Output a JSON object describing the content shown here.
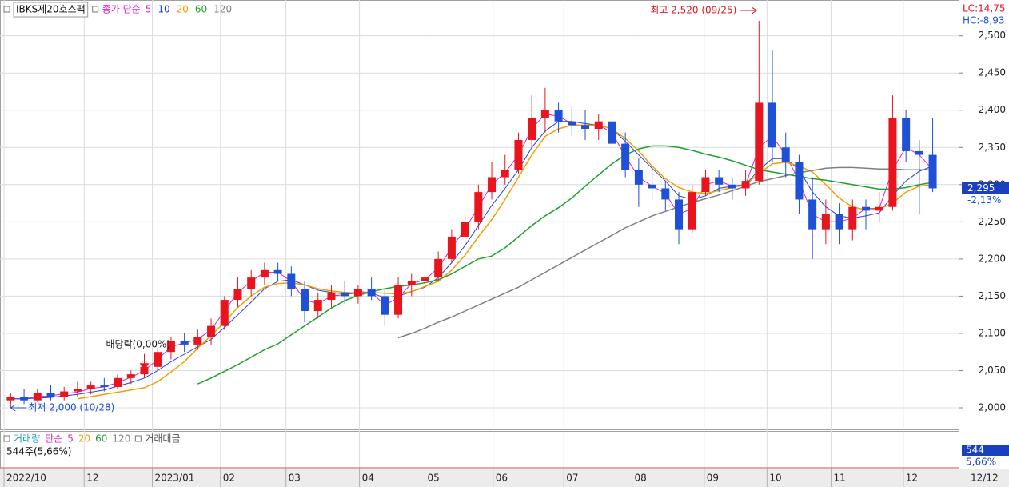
{
  "chart_data": {
    "type": "candlestick",
    "title": "IBKS제20호스팩",
    "ma_label": "종가 단순",
    "lc": "LC:14,75",
    "hc": "HC:-8,93",
    "up_color": "#e8141e",
    "down_color": "#1e50d8",
    "grid": true,
    "xlim": [
      0,
      71.5
    ],
    "xticks": [
      {
        "value": 0,
        "label": "2022/10"
      },
      {
        "value": 6,
        "label": "12"
      },
      {
        "value": 11.1,
        "label": "2023/01"
      },
      {
        "value": 16.2,
        "label": "02"
      },
      {
        "value": 21.1,
        "label": "03"
      },
      {
        "value": 26.6,
        "label": "04"
      },
      {
        "value": 31.5,
        "label": "05"
      },
      {
        "value": 36.6,
        "label": "06"
      },
      {
        "value": 41.9,
        "label": "07"
      },
      {
        "value": 47,
        "label": "08"
      },
      {
        "value": 52.4,
        "label": "09"
      },
      {
        "value": 57.1,
        "label": "10"
      },
      {
        "value": 61.9,
        "label": "11"
      },
      {
        "value": 67.3,
        "label": "12"
      }
    ],
    "date_end": "12/12",
    "ylim": [
      1971,
      2548
    ],
    "yticks": [
      {
        "value": 2000,
        "label": "2,000"
      },
      {
        "value": 2050,
        "label": "2,050"
      },
      {
        "value": 2100,
        "label": "2,100"
      },
      {
        "value": 2150,
        "label": "2,150"
      },
      {
        "value": 2200,
        "label": "2,200"
      },
      {
        "value": 2250,
        "label": "2,250"
      },
      {
        "value": 2300,
        "label": "2,300"
      },
      {
        "value": 2350,
        "label": "2,350"
      },
      {
        "value": 2400,
        "label": "2,400"
      },
      {
        "value": 2450,
        "label": "2,450"
      },
      {
        "value": 2500,
        "label": "2,500"
      }
    ],
    "open": [
      2010,
      2015,
      2010,
      2020,
      2015,
      2022,
      2025,
      2030,
      2028,
      2040,
      2045,
      2055,
      2075,
      2090,
      2085,
      2095,
      2110,
      2145,
      2160,
      2175,
      2185,
      2180,
      2160,
      2130,
      2145,
      2155,
      2150,
      2160,
      2150,
      2125,
      2165,
      2170,
      2175,
      2200,
      2230,
      2250,
      2290,
      2310,
      2320,
      2360,
      2390,
      2400,
      2385,
      2380,
      2375,
      2385,
      2355,
      2320,
      2300,
      2295,
      2280,
      2240,
      2290,
      2310,
      2300,
      2295,
      2305,
      2410,
      2350,
      2330,
      2280,
      2240,
      2260,
      2240,
      2270,
      2265,
      2270,
      2390,
      2345,
      2340
    ],
    "high": [
      2020,
      2025,
      2025,
      2030,
      2028,
      2035,
      2035,
      2040,
      2045,
      2050,
      2060,
      2080,
      2095,
      2100,
      2105,
      2120,
      2150,
      2175,
      2185,
      2195,
      2195,
      2190,
      2170,
      2155,
      2165,
      2170,
      2165,
      2175,
      2160,
      2175,
      2180,
      2185,
      2210,
      2240,
      2260,
      2300,
      2330,
      2340,
      2370,
      2420,
      2430,
      2410,
      2405,
      2400,
      2395,
      2390,
      2370,
      2335,
      2320,
      2305,
      2290,
      2300,
      2320,
      2320,
      2310,
      2320,
      2520,
      2480,
      2370,
      2340,
      2310,
      2280,
      2275,
      2280,
      2280,
      2290,
      2420,
      2400,
      2360,
      2390
    ],
    "low": [
      2000,
      2005,
      2008,
      2010,
      2010,
      2015,
      2018,
      2022,
      2025,
      2032,
      2040,
      2050,
      2065,
      2075,
      2078,
      2085,
      2105,
      2135,
      2150,
      2165,
      2170,
      2150,
      2115,
      2120,
      2135,
      2140,
      2140,
      2145,
      2110,
      2120,
      2150,
      2120,
      2170,
      2195,
      2220,
      2240,
      2280,
      2300,
      2315,
      2350,
      2370,
      2370,
      2365,
      2360,
      2360,
      2340,
      2310,
      2270,
      2280,
      2265,
      2220,
      2235,
      2285,
      2290,
      2280,
      2285,
      2300,
      2330,
      2310,
      2260,
      2200,
      2220,
      2220,
      2225,
      2240,
      2250,
      2265,
      2330,
      2260,
      2290
    ],
    "close": [
      2015,
      2010,
      2020,
      2015,
      2022,
      2025,
      2030,
      2028,
      2040,
      2045,
      2055,
      2075,
      2090,
      2085,
      2095,
      2110,
      2145,
      2160,
      2175,
      2185,
      2180,
      2160,
      2130,
      2145,
      2155,
      2150,
      2160,
      2150,
      2125,
      2165,
      2170,
      2175,
      2200,
      2230,
      2250,
      2290,
      2310,
      2320,
      2360,
      2390,
      2400,
      2385,
      2380,
      2375,
      2385,
      2355,
      2320,
      2300,
      2295,
      2280,
      2240,
      2290,
      2310,
      2300,
      2295,
      2305,
      2410,
      2350,
      2330,
      2280,
      2240,
      2260,
      2240,
      2270,
      2265,
      2270,
      2390,
      2345,
      2340,
      2295
    ],
    "series": [
      {
        "name": "5",
        "color": "#e020c0",
        "values": [
          2012,
          2012,
          2015,
          2016,
          2019,
          2021,
          2026,
          2028,
          2034,
          2041,
          2050,
          2065,
          2082,
          2087,
          2092,
          2105,
          2130,
          2155,
          2170,
          2182,
          2182,
          2170,
          2145,
          2140,
          2150,
          2152,
          2156,
          2155,
          2138,
          2148,
          2167,
          2172,
          2188,
          2215,
          2240,
          2270,
          2300,
          2316,
          2340,
          2375,
          2395,
          2392,
          2382,
          2378,
          2380,
          2370,
          2338,
          2310,
          2298,
          2288,
          2260,
          2268,
          2300,
          2305,
          2298,
          2300,
          2350,
          2365,
          2340,
          2305,
          2260,
          2250,
          2250,
          2255,
          2268,
          2268,
          2320,
          2350,
          2340,
          2320
        ]
      },
      {
        "name": "10",
        "color": "#2040e0",
        "values": [
          2012,
          2012,
          2013,
          2014,
          2016,
          2018,
          2021,
          2024,
          2029,
          2034,
          2040,
          2050,
          2062,
          2072,
          2082,
          2092,
          2108,
          2125,
          2142,
          2160,
          2170,
          2172,
          2165,
          2158,
          2155,
          2153,
          2154,
          2154,
          2148,
          2150,
          2156,
          2162,
          2175,
          2195,
          2218,
          2245,
          2272,
          2295,
          2320,
          2350,
          2372,
          2385,
          2385,
          2382,
          2380,
          2375,
          2358,
          2340,
          2322,
          2305,
          2285,
          2280,
          2285,
          2295,
          2298,
          2300,
          2320,
          2335,
          2335,
          2320,
          2290,
          2270,
          2258,
          2255,
          2258,
          2262,
          2285,
          2305,
          2318,
          2325
        ]
      },
      {
        "name": "20",
        "color": "#f0a000",
        "values": [
          null,
          null,
          null,
          null,
          null,
          2012,
          2015,
          2018,
          2021,
          2024,
          2027,
          2035,
          2048,
          2062,
          2080,
          2097,
          2115,
          2135,
          2150,
          2162,
          2167,
          2168,
          2165,
          2160,
          2157,
          2155,
          2154,
          2155,
          2154,
          2153,
          2156,
          2163,
          2170,
          2185,
          2205,
          2230,
          2253,
          2280,
          2310,
          2340,
          2365,
          2375,
          2380,
          2380,
          2380,
          2375,
          2362,
          2345,
          2325,
          2308,
          2296,
          2290,
          2288,
          2292,
          2296,
          2300,
          2315,
          2328,
          2330,
          2325,
          2317,
          2300,
          2282,
          2270,
          2266,
          2267,
          2275,
          2290,
          2298,
          2300
        ]
      },
      {
        "name": "60",
        "color": "#20a030",
        "values": [
          null,
          null,
          null,
          null,
          null,
          null,
          null,
          null,
          null,
          null,
          null,
          null,
          null,
          null,
          2032,
          2040,
          2049,
          2058,
          2068,
          2078,
          2086,
          2098,
          2110,
          2122,
          2134,
          2144,
          2151,
          2156,
          2160,
          2163,
          2165,
          2168,
          2172,
          2180,
          2190,
          2200,
          2204,
          2215,
          2230,
          2245,
          2258,
          2269,
          2282,
          2298,
          2313,
          2328,
          2340,
          2348,
          2352,
          2352,
          2350,
          2346,
          2341,
          2337,
          2332,
          2326,
          2320,
          2317,
          2314,
          2311,
          2308,
          2306,
          2303,
          2300,
          2297,
          2294,
          2294,
          2296,
          2300,
          2303
        ]
      },
      {
        "name": "120",
        "color": "#808080",
        "values": [
          null,
          null,
          null,
          null,
          null,
          null,
          null,
          null,
          null,
          null,
          null,
          null,
          null,
          null,
          null,
          null,
          null,
          null,
          null,
          null,
          null,
          null,
          null,
          null,
          null,
          null,
          null,
          null,
          null,
          2094,
          2100,
          2107,
          2115,
          2122,
          2130,
          2138,
          2146,
          2154,
          2162,
          2172,
          2182,
          2192,
          2202,
          2212,
          2222,
          2232,
          2242,
          2250,
          2258,
          2264,
          2270,
          2276,
          2281,
          2286,
          2292,
          2298,
          2304,
          2308,
          2312,
          2316,
          2319,
          2322,
          2323,
          2323,
          2322,
          2321,
          2321,
          2320,
          2320,
          2320
        ]
      }
    ],
    "annotations": {
      "high": "최고 2,520 (09/25)",
      "low": "최저 2,000 (10/28)",
      "dividend": "배당락(0,00%)"
    },
    "last_price": {
      "value": 2295,
      "label": "2,295"
    },
    "last_change": "-2,13%",
    "volume_panel": {
      "title": "거래량",
      "ma_label": "단순",
      "ma": [
        "5",
        "20",
        "60",
        "120"
      ],
      "extra": "거래대금",
      "value_label": "544주(5,66%)",
      "axis_value": "544",
      "axis_pct": "5,66%"
    }
  }
}
